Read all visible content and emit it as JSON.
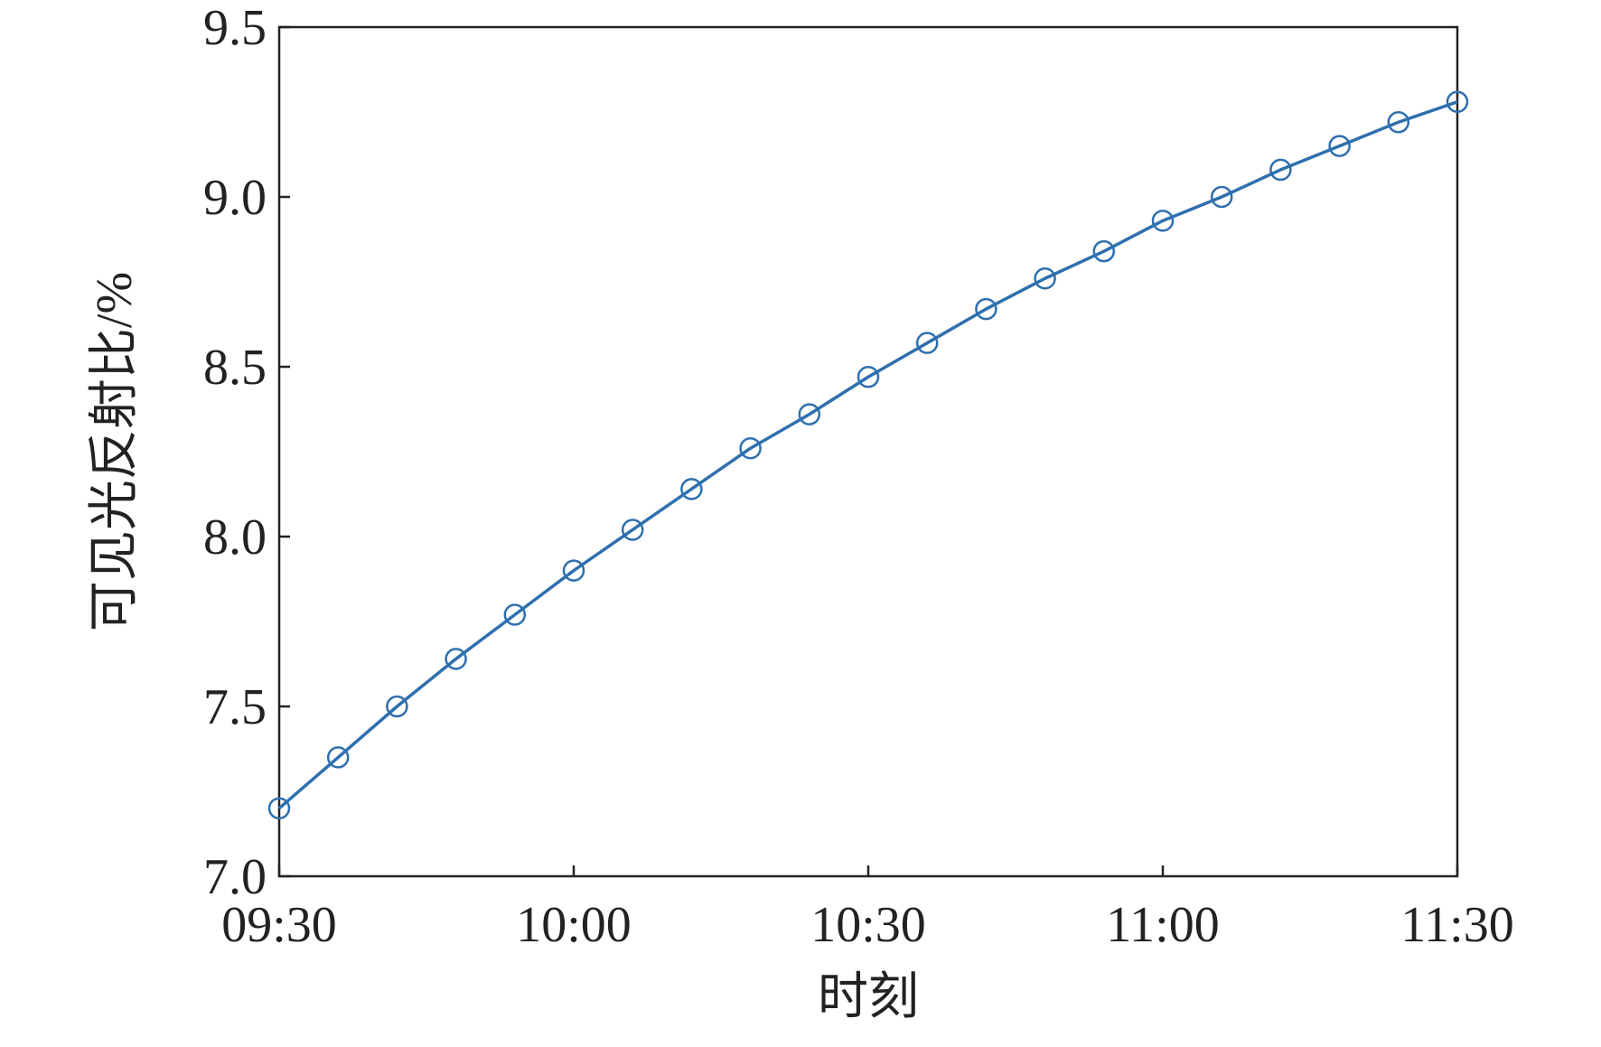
{
  "chart_data": {
    "type": "line",
    "x_label": "时刻",
    "y_label": "可见光反射比/%",
    "x": [
      "09:30",
      "09:36",
      "09:42",
      "09:48",
      "09:54",
      "10:00",
      "10:06",
      "10:12",
      "10:18",
      "10:24",
      "10:30",
      "10:36",
      "10:42",
      "10:48",
      "10:54",
      "11:00",
      "11:06",
      "11:12",
      "11:18",
      "11:24",
      "11:30"
    ],
    "series": [
      {
        "color": "#2e6fae",
        "marker": "circle",
        "values": [
          7.2,
          7.35,
          7.5,
          7.64,
          7.77,
          7.9,
          8.02,
          8.14,
          8.26,
          8.36,
          8.47,
          8.57,
          8.67,
          8.76,
          8.84,
          8.93,
          9.0,
          9.08,
          9.15,
          9.22,
          9.28
        ]
      }
    ],
    "xlim": [
      "09:30",
      "11:30"
    ],
    "xticks": [
      "09:30",
      "10:00",
      "10:30",
      "11:00",
      "11:30"
    ],
    "ylim": [
      7,
      9.5
    ],
    "yticks": [
      {
        "value": 7,
        "label": "7.0"
      },
      7.5,
      {
        "value": 8,
        "label": "8.0"
      },
      8.5,
      {
        "value": 9,
        "label": "9.0"
      },
      9.5
    ]
  }
}
